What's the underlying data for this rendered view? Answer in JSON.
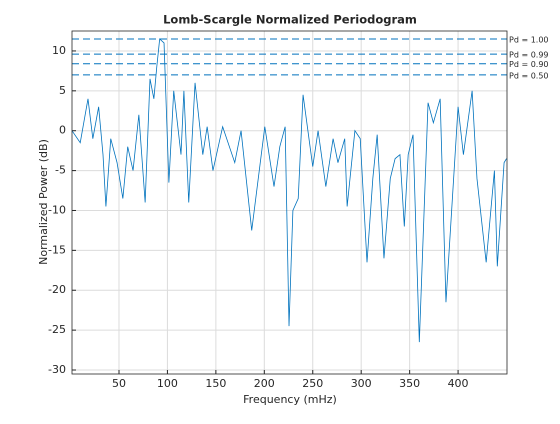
{
  "chart_data": {
    "type": "line",
    "title": "Lomb-Scargle Normalized Periodogram",
    "x_label": "Frequency (mHz)",
    "y_label": "Normalized Power (dB)",
    "x": [
      1.5,
      10,
      18,
      23,
      29,
      33.5,
      36.5,
      41.5,
      48,
      54,
      59,
      64.5,
      70.5,
      77,
      82,
      86,
      89,
      92,
      96.5,
      101.5,
      106.5,
      114,
      117,
      122,
      128.5,
      136.5,
      141,
      147,
      157,
      169.5,
      176,
      187,
      200.5,
      210,
      216,
      221.5,
      225.5,
      229.5,
      235,
      240,
      250,
      255.5,
      263.5,
      271,
      276,
      283,
      285.5,
      293.5,
      299,
      306,
      312,
      316.5,
      323.5,
      330,
      335,
      340,
      344.5,
      348.5,
      353.5,
      360,
      369,
      374.5,
      381.5,
      387.5,
      400,
      405.5,
      414.5,
      419.5,
      429,
      437.5,
      440.5,
      447.5,
      450
    ],
    "series": [
      {
        "name": "Periodogram",
        "color": "#0072bd",
        "values": [
          0,
          -1.5,
          4,
          -1,
          3,
          -3,
          -9.5,
          -1,
          -4,
          -8.5,
          -2,
          -5,
          2,
          -9,
          6.5,
          4,
          8,
          11.5,
          11,
          -6.5,
          5,
          -3,
          5,
          -9,
          6,
          -3,
          0.5,
          -5,
          0.5,
          -4,
          0,
          -12.5,
          0.5,
          -7,
          -2,
          0.5,
          -24.5,
          -10,
          -8.5,
          4.5,
          -4.5,
          0,
          -7,
          -1,
          -4,
          -1,
          -9.5,
          0,
          -1,
          -16.5,
          -6,
          -0.5,
          -16,
          -6,
          -3.5,
          -3,
          -12,
          -3,
          -0.5,
          -26.5,
          3.5,
          1,
          4,
          -21.5,
          3,
          -3,
          5,
          -6,
          -16.5,
          -5,
          -17,
          -4,
          -3.5
        ]
      }
    ],
    "thresholds": [
      {
        "label": "Pd = 1.00",
        "value": 11.5
      },
      {
        "label": "Pd = 0.99",
        "value": 9.6
      },
      {
        "label": "Pd = 0.90",
        "value": 8.4
      },
      {
        "label": "Pd = 0.50",
        "value": 7
      }
    ],
    "xlim": [
      1.5,
      450.5
    ],
    "ylim": [
      -30.5,
      12.5
    ],
    "xticks": [
      50,
      100,
      150,
      200,
      250,
      300,
      350,
      400
    ],
    "yticks": [
      -30,
      -25,
      -20,
      -15,
      -10,
      -5,
      0,
      5,
      10
    ],
    "grid": true
  }
}
